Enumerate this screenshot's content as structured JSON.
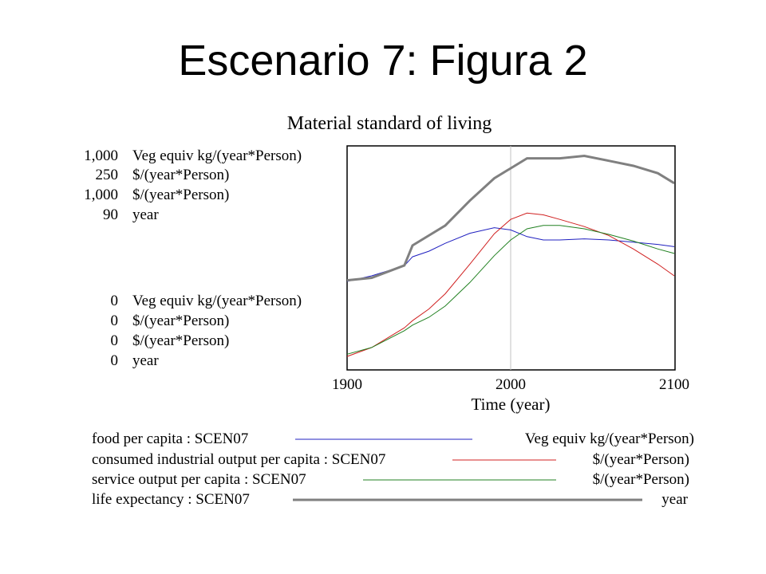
{
  "slide": {
    "title": "Escenario 7: Figura 2"
  },
  "colors": {
    "food": "#2020c0",
    "industrial": "#d02020",
    "service": "#208020",
    "life": "#808080",
    "grid": "#c0c0c0"
  },
  "chart_data": {
    "type": "line",
    "title": "Material standard of living",
    "xlabel": "Time (year)",
    "xlim": [
      1900,
      2100
    ],
    "x_ticks": [
      "1900",
      "2000",
      "2100"
    ],
    "grid": "vertical line at 2000",
    "y_scales": [
      {
        "max": "1,000",
        "min": "0",
        "unit": "Veg equiv kg/(year*Person)"
      },
      {
        "max": "250",
        "min": "0",
        "unit": "$/(year*Person)"
      },
      {
        "max": "1,000",
        "min": "0",
        "unit": "$/(year*Person)"
      },
      {
        "max": "90",
        "min": "0",
        "unit": "year"
      }
    ],
    "x": [
      1900,
      1915,
      1935,
      1940,
      1950,
      1960,
      1975,
      1990,
      2000,
      2010,
      2020,
      2030,
      2045,
      2060,
      2075,
      2090,
      2100
    ],
    "series": [
      {
        "name": "food per capita : SCEN07",
        "unit": "Veg equiv kg/(year*Person)",
        "ymax": 1000,
        "color_key": "food",
        "width": 1,
        "values": [
          395,
          420,
          465,
          505,
          530,
          565,
          610,
          635,
          625,
          595,
          580,
          580,
          585,
          580,
          570,
          560,
          550
        ]
      },
      {
        "name": "consumed industrial output per capita : SCEN07",
        "unit": "$/(year*Person)",
        "ymax": 250,
        "color_key": "industrial",
        "width": 1,
        "values": [
          15,
          25,
          47,
          55,
          68,
          85,
          118,
          152,
          168,
          175,
          173,
          168,
          160,
          150,
          135,
          118,
          105
        ]
      },
      {
        "name": "service output per capita : SCEN07",
        "unit": "$/(year*Person)",
        "ymax": 1000,
        "color_key": "service",
        "width": 1,
        "values": [
          70,
          100,
          175,
          200,
          235,
          285,
          390,
          510,
          580,
          630,
          645,
          645,
          630,
          605,
          575,
          540,
          520
        ]
      },
      {
        "name": "life expectancy : SCEN07",
        "unit": "year",
        "ymax": 90,
        "color_key": "life",
        "width": 3,
        "values": [
          36,
          37,
          42,
          50,
          54,
          58,
          68,
          77,
          81,
          85,
          85,
          85,
          86,
          84,
          82,
          79,
          75
        ]
      }
    ]
  }
}
